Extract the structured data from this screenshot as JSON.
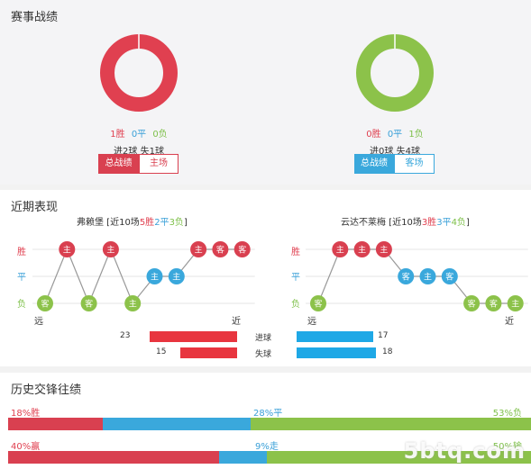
{
  "section1": {
    "title": "赛事战绩",
    "left": {
      "win": "1胜",
      "draw": "0平",
      "loss": "0负",
      "goals": "进2球  失1球",
      "tab_active": "总战绩",
      "tab_other": "主场",
      "donut_color": "#e04050"
    },
    "right": {
      "win": "0胜",
      "draw": "0平",
      "loss": "1负",
      "goals": "进0球  失4球",
      "tab_active": "总战绩",
      "tab_other": "客场",
      "donut_color": "#8cc24a"
    }
  },
  "section2": {
    "title": "近期表现",
    "axis": {
      "win": "胜",
      "draw": "平",
      "loss": "负",
      "far": "远",
      "near": "近"
    },
    "left": {
      "name": "弗赖堡",
      "summary_prefix": " [近10场",
      "w": "5胜",
      "d": "2平",
      "l": "3负",
      "summary_suffix": "]",
      "results": [
        {
          "r": "L",
          "t": "客"
        },
        {
          "r": "W",
          "t": "主"
        },
        {
          "r": "L",
          "t": "客"
        },
        {
          "r": "W",
          "t": "主"
        },
        {
          "r": "L",
          "t": "主"
        },
        {
          "r": "D",
          "t": "主"
        },
        {
          "r": "D",
          "t": "主"
        },
        {
          "r": "W",
          "t": "主"
        },
        {
          "r": "W",
          "t": "客"
        },
        {
          "r": "W",
          "t": "客"
        }
      ],
      "scored": "23",
      "conceded": "15",
      "scored_ratio": 0.97,
      "conceded_ratio": 0.63
    },
    "right": {
      "name": "云达不莱梅",
      "summary_prefix": " [近10场",
      "w": "3胜",
      "d": "3平",
      "l": "4负",
      "summary_suffix": "]",
      "results": [
        {
          "r": "L",
          "t": "客"
        },
        {
          "r": "W",
          "t": "主"
        },
        {
          "r": "W",
          "t": "主"
        },
        {
          "r": "W",
          "t": "主"
        },
        {
          "r": "D",
          "t": "客"
        },
        {
          "r": "D",
          "t": "主"
        },
        {
          "r": "D",
          "t": "客"
        },
        {
          "r": "L",
          "t": "客"
        },
        {
          "r": "L",
          "t": "客"
        },
        {
          "r": "L",
          "t": "主"
        }
      ],
      "scored": "17",
      "conceded": "18",
      "scored_ratio": 0.94,
      "conceded_ratio": 1.0
    },
    "goals_for_label": "进球",
    "goals_against_label": "失球",
    "colors": {
      "win": "#d94050",
      "draw": "#3aa8dc",
      "loss": "#8cc24a",
      "bar_red": "#e8353f",
      "bar_blue": "#1ea8e6"
    }
  },
  "section3": {
    "title": "历史交锋往绩",
    "row1": {
      "left": "18%胜",
      "mid": "28%平",
      "right": "53%负",
      "p1": 18,
      "p2": 28,
      "p3": 53
    },
    "row2": {
      "left": "40%赢",
      "mid": "9%走",
      "right": "50%输",
      "p1": 40,
      "p2": 9,
      "p3": 50
    },
    "watermark": "5btq.com"
  }
}
